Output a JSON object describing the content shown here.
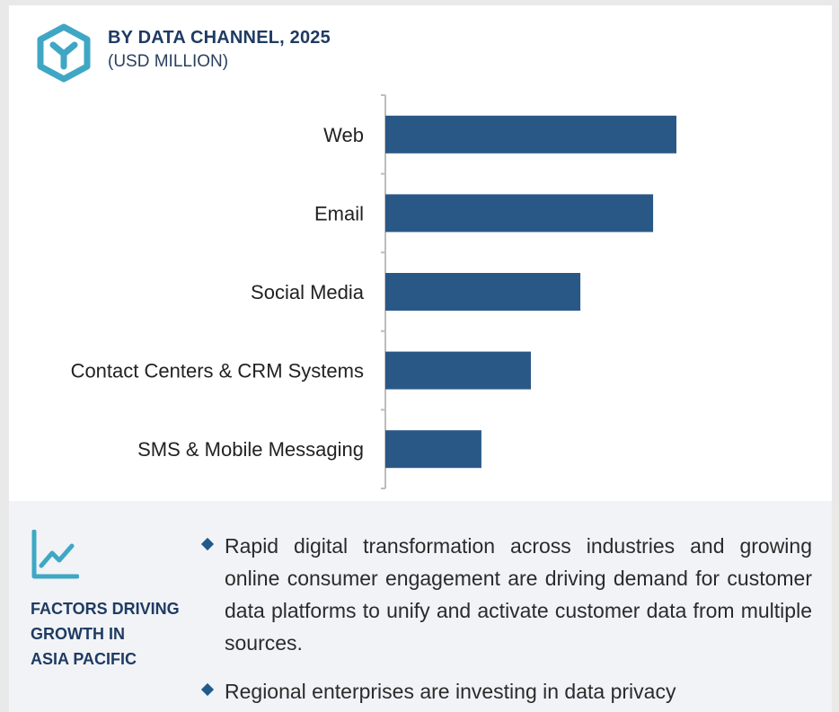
{
  "header": {
    "title": "BY DATA CHANNEL, 2025",
    "subtitle": "(USD MILLION)",
    "logo_icon": "hexagon-y-logo-icon",
    "accent_color": "#3fa7c4"
  },
  "chart_data": {
    "type": "bar",
    "orientation": "horizontal",
    "title": "BY DATA CHANNEL, 2025",
    "subtitle": "(USD MILLION)",
    "categories": [
      "Web",
      "Email",
      "Social Media",
      "Contact Centers & CRM Systems",
      "SMS & Mobile Messaging"
    ],
    "values": [
      100,
      92,
      67,
      50,
      33
    ],
    "bar_color": "#2a5886",
    "grid": false,
    "legend": "none",
    "xlim": [
      0,
      100
    ]
  },
  "factors": {
    "icon": "trend-line-chart-icon",
    "heading": [
      "FACTORS DRIVING",
      "GROWTH IN",
      "ASIA PACIFIC"
    ],
    "bullets": [
      "Rapid digital transformation across industries and growing online consumer engagement are driving demand for customer data platforms to unify and activate customer data from multiple sources.",
      "Regional enterprises are investing in data privacy"
    ]
  }
}
